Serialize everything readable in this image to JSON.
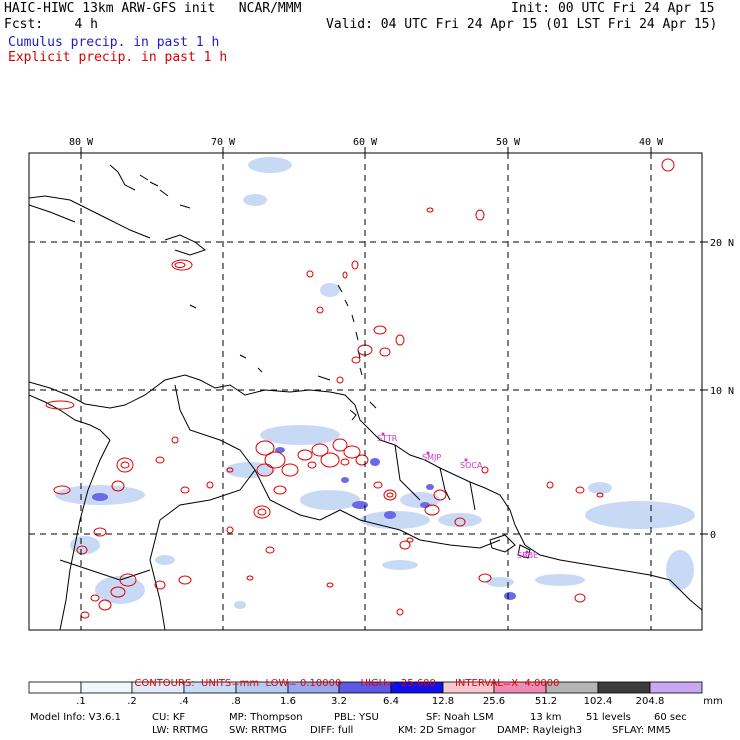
{
  "header": {
    "title_left": "HAIC-HIWC 13km ARW-GFS init   NCAR/MMM",
    "init": "Init: 00 UTC Fri 24 Apr 15",
    "fcst_left": "Fcst:    4 h",
    "valid": "Valid: 04 UTC Fri 24 Apr 15 (01 LST Fri 24 Apr 15)",
    "cumulus_label": "Cumulus precip. in past 1 h",
    "explicit_label": "Explicit precip. in past 1 h"
  },
  "map": {
    "lon_labels": [
      "80 W",
      "70 W",
      "60 W",
      "50 W",
      "40 W"
    ],
    "lat_labels": [
      "20 N",
      "10 N",
      "0"
    ],
    "station_labels": [
      "STTR",
      "SMJP",
      "SOCA",
      "SBBE"
    ],
    "land_color": "#000000",
    "cumulus_color": "#b9cdf2",
    "cumulus_dark_color": "#5a5ae6",
    "explicit_color": "#dd0000",
    "station_color": "#cc33cc"
  },
  "contours_line": {
    "label": "CONTOURS:",
    "units": "UNITS=mm",
    "low": "LOW= 0.10000",
    "high": "HIGH=  25.600",
    "interval": "INTERVAL=X  4.0000"
  },
  "legend": {
    "ticks": [
      ".1",
      ".2",
      ".4",
      ".8",
      "1.6",
      "3.2",
      "6.4",
      "12.8",
      "25.6",
      "51.2",
      "102.4",
      "204.8"
    ],
    "unit": "mm",
    "colors": [
      "#ffffff",
      "#f2f6fd",
      "#e1ecfb",
      "#c9dcf8",
      "#b3ccf4",
      "#9aa8f0",
      "#5a5ae6",
      "#1010ee",
      "#f8c8d2",
      "#f08cb4",
      "#b4b4b4",
      "#3c3c3c",
      "#c8a8f0"
    ]
  },
  "model_info": {
    "line1": [
      "Model Info: V3.6.1",
      "CU: KF",
      "MP: Thompson",
      "PBL: YSU",
      "SF: Noah LSM",
      "13 km",
      "51 levels",
      "60 sec"
    ],
    "line2": [
      "LW: RRTMG",
      "SW: RRTMG",
      "DIFF: full",
      "KM: 2D Smagor",
      "DAMP: Rayleigh3",
      "SFLAY: MM5"
    ]
  }
}
